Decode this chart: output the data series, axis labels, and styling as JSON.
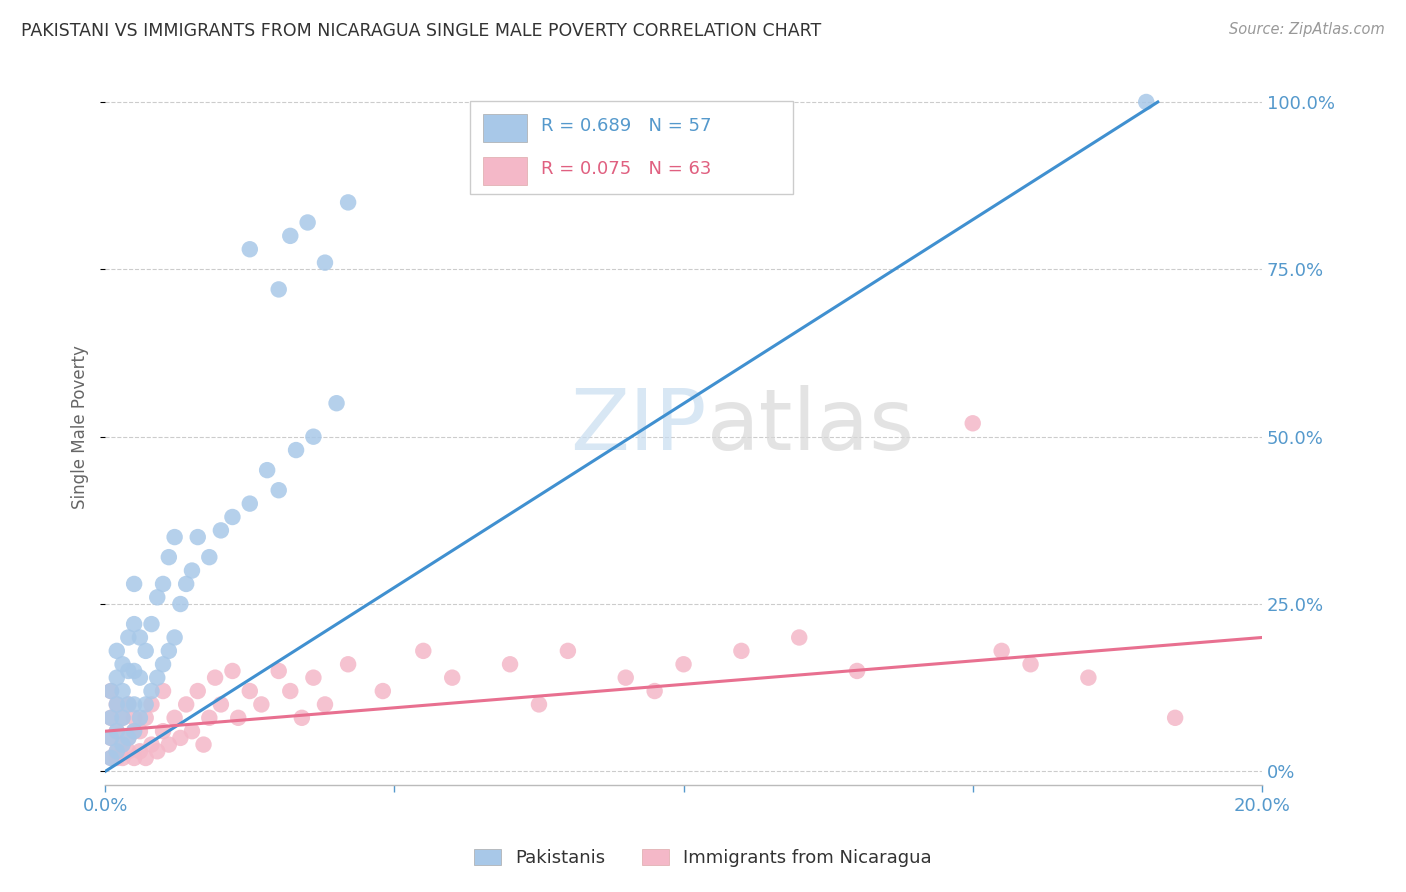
{
  "title": "PAKISTANI VS IMMIGRANTS FROM NICARAGUA SINGLE MALE POVERTY CORRELATION CHART",
  "source": "Source: ZipAtlas.com",
  "ylabel": "Single Male Poverty",
  "watermark_zip": "ZIP",
  "watermark_atlas": "atlas",
  "legend_blue_R": "R = 0.689",
  "legend_blue_N": "N = 57",
  "legend_pink_R": "R = 0.075",
  "legend_pink_N": "N = 63",
  "legend_blue_label": "Pakistanis",
  "legend_pink_label": "Immigrants from Nicaragua",
  "ytick_values": [
    0,
    0.25,
    0.5,
    0.75,
    1.0
  ],
  "ytick_labels": [
    "0%",
    "25.0%",
    "50.0%",
    "75.0%",
    "100.0%"
  ],
  "xtick_values": [
    0.0,
    0.05,
    0.1,
    0.15,
    0.2
  ],
  "xtick_labels": [
    "0.0%",
    "",
    "",
    "",
    "20.0%"
  ],
  "xlim": [
    0.0,
    0.2
  ],
  "ylim": [
    -0.02,
    1.05
  ],
  "blue_color": "#a8c8e8",
  "pink_color": "#f4b8c8",
  "blue_line_color": "#4090d0",
  "pink_line_color": "#e87090",
  "grid_color": "#cccccc",
  "title_color": "#333333",
  "axis_label_color": "#666666",
  "tick_color": "#5599cc",
  "background_color": "#ffffff",
  "blue_scatter_x": [
    0.001,
    0.001,
    0.001,
    0.001,
    0.002,
    0.002,
    0.002,
    0.002,
    0.002,
    0.003,
    0.003,
    0.003,
    0.003,
    0.004,
    0.004,
    0.004,
    0.004,
    0.005,
    0.005,
    0.005,
    0.005,
    0.005,
    0.006,
    0.006,
    0.006,
    0.007,
    0.007,
    0.008,
    0.008,
    0.009,
    0.009,
    0.01,
    0.01,
    0.011,
    0.011,
    0.012,
    0.012,
    0.013,
    0.014,
    0.015,
    0.016,
    0.018,
    0.02,
    0.022,
    0.025,
    0.028,
    0.03,
    0.033,
    0.036,
    0.04,
    0.025,
    0.03,
    0.032,
    0.035,
    0.038,
    0.042,
    0.18
  ],
  "blue_scatter_y": [
    0.02,
    0.05,
    0.08,
    0.12,
    0.03,
    0.06,
    0.1,
    0.14,
    0.18,
    0.04,
    0.08,
    0.12,
    0.16,
    0.05,
    0.1,
    0.15,
    0.2,
    0.06,
    0.1,
    0.15,
    0.22,
    0.28,
    0.08,
    0.14,
    0.2,
    0.1,
    0.18,
    0.12,
    0.22,
    0.14,
    0.26,
    0.16,
    0.28,
    0.18,
    0.32,
    0.2,
    0.35,
    0.25,
    0.28,
    0.3,
    0.35,
    0.32,
    0.36,
    0.38,
    0.4,
    0.45,
    0.42,
    0.48,
    0.5,
    0.55,
    0.78,
    0.72,
    0.8,
    0.82,
    0.76,
    0.85,
    1.0
  ],
  "pink_scatter_x": [
    0.001,
    0.001,
    0.001,
    0.001,
    0.002,
    0.002,
    0.002,
    0.002,
    0.003,
    0.003,
    0.003,
    0.004,
    0.004,
    0.004,
    0.005,
    0.005,
    0.005,
    0.006,
    0.006,
    0.007,
    0.007,
    0.008,
    0.008,
    0.009,
    0.01,
    0.01,
    0.011,
    0.012,
    0.013,
    0.014,
    0.015,
    0.016,
    0.017,
    0.018,
    0.019,
    0.02,
    0.022,
    0.023,
    0.025,
    0.027,
    0.03,
    0.032,
    0.034,
    0.036,
    0.038,
    0.042,
    0.048,
    0.055,
    0.06,
    0.07,
    0.075,
    0.08,
    0.09,
    0.095,
    0.1,
    0.11,
    0.12,
    0.13,
    0.15,
    0.155,
    0.16,
    0.17,
    0.185
  ],
  "pink_scatter_y": [
    0.02,
    0.05,
    0.08,
    0.12,
    0.03,
    0.06,
    0.1,
    0.02,
    0.04,
    0.08,
    0.02,
    0.05,
    0.1,
    0.03,
    0.06,
    0.02,
    0.08,
    0.03,
    0.06,
    0.02,
    0.08,
    0.04,
    0.1,
    0.03,
    0.06,
    0.12,
    0.04,
    0.08,
    0.05,
    0.1,
    0.06,
    0.12,
    0.04,
    0.08,
    0.14,
    0.1,
    0.15,
    0.08,
    0.12,
    0.1,
    0.15,
    0.12,
    0.08,
    0.14,
    0.1,
    0.16,
    0.12,
    0.18,
    0.14,
    0.16,
    0.1,
    0.18,
    0.14,
    0.12,
    0.16,
    0.18,
    0.2,
    0.15,
    0.52,
    0.18,
    0.16,
    0.14,
    0.08
  ],
  "blue_line_x": [
    0.0,
    0.182
  ],
  "blue_line_y": [
    0.0,
    1.0
  ],
  "pink_line_x": [
    0.0,
    0.2
  ],
  "pink_line_y": [
    0.06,
    0.2
  ]
}
